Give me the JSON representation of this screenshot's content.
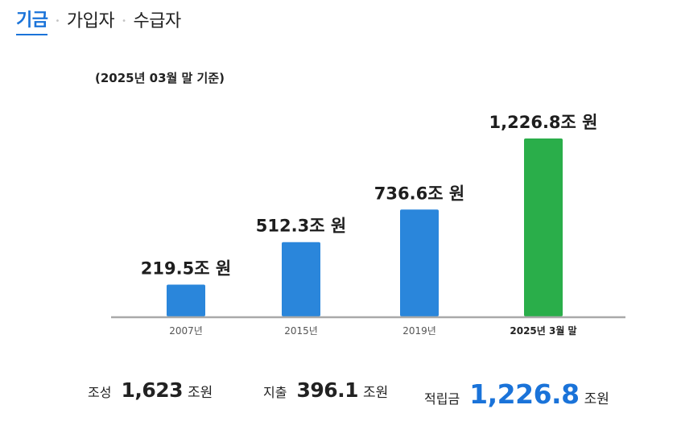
{
  "tabs": [
    {
      "label": "기금",
      "active": true
    },
    {
      "label": "가입자",
      "active": false
    },
    {
      "label": "수급자",
      "active": false
    }
  ],
  "tab_separator": "•",
  "chart_data": {
    "type": "bar",
    "title": "",
    "subtitle": "(2025년 03월 말 기준)",
    "categories": [
      "2007년",
      "2015년",
      "2019년",
      "2025년 3월 말"
    ],
    "values": [
      219.5,
      512.3,
      736.6,
      1226.8
    ],
    "data_labels": [
      "219.5조 원",
      "512.3조 원",
      "736.6조 원",
      "1,226.8조 원"
    ],
    "unit": "조 원",
    "colors": [
      "#2a86db",
      "#2a86db",
      "#2a86db",
      "#2aae4a"
    ],
    "ylim": [
      0,
      1226.8
    ],
    "grid": false,
    "legend": "none",
    "xlabel": "",
    "ylabel": ""
  },
  "summary": [
    {
      "label": "조성",
      "value": "1,623",
      "unit": "조원"
    },
    {
      "label": "지출",
      "value": "396.1",
      "unit": "조원"
    },
    {
      "label": "적립금",
      "value": "1,226.8",
      "unit": "조원"
    }
  ]
}
